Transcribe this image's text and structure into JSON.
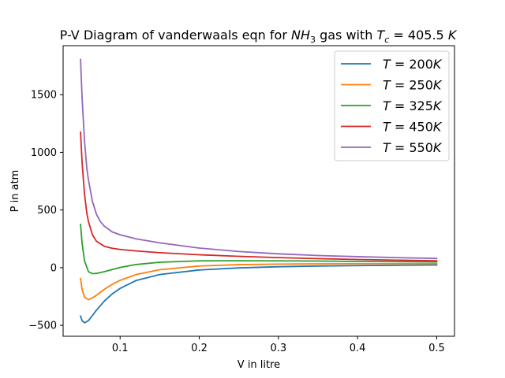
{
  "chart_data": {
    "type": "line",
    "title_prefix": "P-V Diagram of vanderwaals eqn for ",
    "title_gas": "NH",
    "title_gas_sub": "3",
    "title_mid": " gas with ",
    "title_tc_sym": "T",
    "title_tc_sub": "c",
    "title_tc_value": " = 405.5 ",
    "title_tc_unit": "K",
    "xlabel": "V in litre",
    "ylabel": "P in atm",
    "xlim": [
      0.028,
      0.5225
    ],
    "ylim": [
      -595,
      1925
    ],
    "xticks": [
      {
        "value": 0.1,
        "label": "0.1"
      },
      {
        "value": 0.2,
        "label": "0.2"
      },
      {
        "value": 0.3,
        "label": "0.3"
      },
      {
        "value": 0.4,
        "label": "0.4"
      },
      {
        "value": 0.5,
        "label": "0.5"
      }
    ],
    "yticks": [
      {
        "value": -500,
        "label": "−500"
      },
      {
        "value": 0,
        "label": "0"
      },
      {
        "value": 500,
        "label": "500"
      },
      {
        "value": 1000,
        "label": "1000"
      },
      {
        "value": 1500,
        "label": "1500"
      }
    ],
    "legend_position": "top-right",
    "grid": false,
    "series": [
      {
        "name": "T = 200K",
        "sym": "T",
        "eq": " = ",
        "value": "200",
        "unit": "K",
        "color": "#1f77b4",
        "x": [
          0.05,
          0.052,
          0.055,
          0.06,
          0.065,
          0.07,
          0.08,
          0.09,
          0.1,
          0.12,
          0.15,
          0.2,
          0.25,
          0.3,
          0.35,
          0.4,
          0.45,
          0.5
        ],
        "y": [
          -420,
          -460,
          -478,
          -460,
          -415,
          -370,
          -290,
          -228,
          -180,
          -112,
          -60,
          -20,
          -2,
          8,
          14,
          18,
          21,
          23
        ]
      },
      {
        "name": "T = 250K",
        "sym": "T",
        "eq": " = ",
        "value": "250",
        "unit": "K",
        "color": "#ff7f0e",
        "x": [
          0.05,
          0.052,
          0.055,
          0.06,
          0.065,
          0.07,
          0.08,
          0.09,
          0.1,
          0.12,
          0.15,
          0.2,
          0.25,
          0.3,
          0.35,
          0.4,
          0.45,
          0.5
        ],
        "y": [
          -95,
          -190,
          -255,
          -278,
          -262,
          -240,
          -188,
          -145,
          -110,
          -60,
          -18,
          14,
          26,
          31,
          33,
          34,
          35,
          35
        ]
      },
      {
        "name": "T = 325K",
        "sym": "T",
        "eq": " = ",
        "value": "325",
        "unit": "K",
        "color": "#2ca02c",
        "x": [
          0.05,
          0.052,
          0.055,
          0.06,
          0.065,
          0.07,
          0.08,
          0.09,
          0.1,
          0.12,
          0.15,
          0.2,
          0.25,
          0.3,
          0.35,
          0.4,
          0.45,
          0.5
        ],
        "y": [
          375,
          210,
          60,
          -35,
          -52,
          -50,
          -35,
          -16,
          2,
          27,
          47,
          59,
          60,
          59,
          57,
          54,
          52,
          50
        ]
      },
      {
        "name": "T = 450K",
        "sym": "T",
        "eq": " = ",
        "value": "450",
        "unit": "K",
        "color": "#d62728",
        "x": [
          0.05,
          0.052,
          0.055,
          0.058,
          0.06,
          0.065,
          0.07,
          0.08,
          0.09,
          0.1,
          0.12,
          0.15,
          0.2,
          0.25,
          0.3,
          0.35,
          0.4,
          0.45,
          0.5
        ],
        "y": [
          1175,
          910,
          640,
          470,
          400,
          285,
          230,
          185,
          168,
          158,
          145,
          130,
          112,
          98,
          87,
          78,
          71,
          65,
          60
        ]
      },
      {
        "name": "T = 550K",
        "sym": "T",
        "eq": " = ",
        "value": "550",
        "unit": "K",
        "color": "#9467bd",
        "x": [
          0.05,
          0.052,
          0.055,
          0.058,
          0.06,
          0.065,
          0.07,
          0.075,
          0.08,
          0.09,
          0.1,
          0.12,
          0.15,
          0.2,
          0.25,
          0.3,
          0.35,
          0.4,
          0.45,
          0.5
        ],
        "y": [
          1805,
          1470,
          1100,
          860,
          760,
          575,
          465,
          400,
          360,
          310,
          285,
          250,
          215,
          170,
          140,
          120,
          105,
          95,
          87,
          80
        ]
      }
    ]
  }
}
